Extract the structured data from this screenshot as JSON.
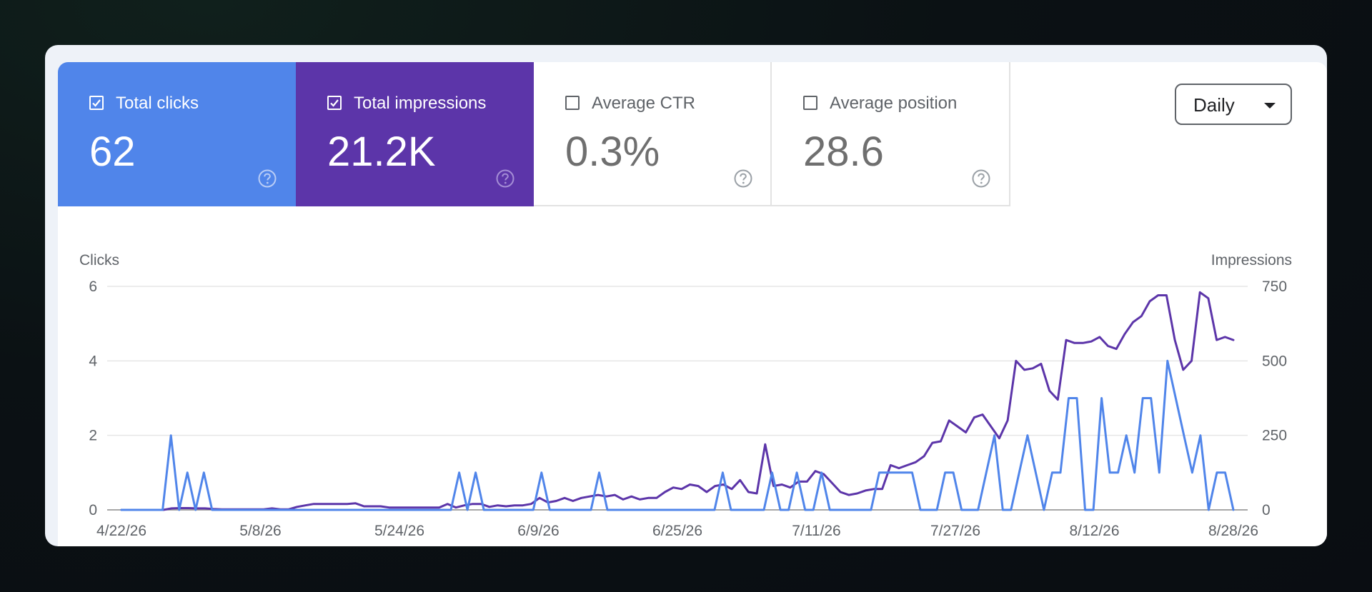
{
  "metrics": [
    {
      "label": "Total clicks",
      "value": "62",
      "checked": true,
      "color": "#5085ea"
    },
    {
      "label": "Total impressions",
      "value": "21.2K",
      "checked": true,
      "color": "#5c35a9"
    },
    {
      "label": "Average CTR",
      "value": "0.3%",
      "checked": false
    },
    {
      "label": "Average position",
      "value": "28.6",
      "checked": false
    }
  ],
  "icons": {
    "checkbox": "checkbox-icon",
    "help": "help-circle-icon",
    "dropdown": "caret-down-icon"
  },
  "granularity": {
    "selected": "Daily"
  },
  "chart_data": {
    "type": "line",
    "left_axis": {
      "label": "Clicks",
      "range": [
        0,
        6
      ],
      "ticks": [
        "0",
        "2",
        "4",
        "6"
      ]
    },
    "right_axis": {
      "label": "Impressions",
      "range": [
        0,
        750
      ],
      "ticks": [
        "0",
        "250",
        "500",
        "750"
      ]
    },
    "x_tick_labels": [
      "4/22/26",
      "5/8/26",
      "5/24/26",
      "6/9/26",
      "6/25/26",
      "7/11/26",
      "7/27/26",
      "8/12/26",
      "8/28/26"
    ],
    "grid": true,
    "series": [
      {
        "name": "Clicks",
        "axis": "left",
        "color": "#5085ea",
        "values": [
          0,
          0,
          0,
          0,
          0,
          0,
          2,
          0,
          1,
          0,
          1,
          0,
          0,
          0,
          0,
          0,
          0,
          0,
          0,
          0,
          0,
          0,
          0,
          0,
          0,
          0,
          0,
          0,
          0,
          0,
          0,
          0,
          0,
          0,
          0,
          0,
          0,
          0,
          0,
          0,
          0,
          1,
          0,
          1,
          0,
          0,
          0,
          0,
          0,
          0,
          0,
          1,
          0,
          0,
          0,
          0,
          0,
          0,
          1,
          0,
          0,
          0,
          0,
          0,
          0,
          0,
          0,
          0,
          0,
          0,
          0,
          0,
          0,
          1,
          0,
          0,
          0,
          0,
          0,
          1,
          0,
          0,
          1,
          0,
          0,
          1,
          0,
          0,
          0,
          0,
          0,
          0,
          1,
          1,
          1,
          1,
          1,
          0,
          0,
          0,
          1,
          1,
          0,
          0,
          0,
          1,
          2,
          0,
          0,
          1,
          2,
          1,
          0,
          1,
          1,
          3,
          3,
          0,
          0,
          3,
          1,
          1,
          2,
          1,
          3,
          3,
          1,
          4,
          3,
          2,
          1,
          2,
          0,
          1,
          1,
          0
        ]
      },
      {
        "name": "Impressions",
        "axis": "right",
        "color": "#5c35a9",
        "values": [
          0,
          0,
          0,
          0,
          0,
          0,
          5,
          6,
          6,
          5,
          5,
          3,
          2,
          2,
          2,
          2,
          2,
          2,
          5,
          2,
          2,
          10,
          15,
          20,
          20,
          20,
          20,
          20,
          22,
          12,
          12,
          12,
          8,
          8,
          8,
          8,
          8,
          8,
          8,
          20,
          8,
          15,
          20,
          20,
          10,
          15,
          12,
          15,
          15,
          20,
          40,
          25,
          30,
          40,
          30,
          40,
          45,
          50,
          45,
          50,
          35,
          45,
          35,
          40,
          40,
          60,
          75,
          70,
          85,
          80,
          60,
          80,
          85,
          70,
          100,
          60,
          55,
          220,
          80,
          85,
          75,
          95,
          95,
          130,
          120,
          90,
          60,
          50,
          55,
          65,
          70,
          70,
          150,
          140,
          150,
          160,
          180,
          225,
          230,
          300,
          280,
          260,
          310,
          320,
          280,
          240,
          300,
          500,
          470,
          475,
          490,
          400,
          370,
          570,
          560,
          560,
          565,
          580,
          550,
          540,
          590,
          630,
          650,
          700,
          720,
          720,
          570,
          470,
          500,
          730,
          710,
          570,
          580,
          570
        ]
      }
    ]
  }
}
